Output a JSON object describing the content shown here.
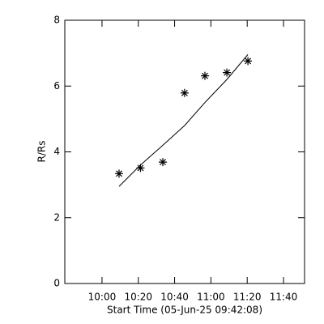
{
  "chart_data": {
    "type": "scatter",
    "x_label": "Start Time (05-Jun-25 09:42:08)",
    "y_label": "R/Rs",
    "xlim": [
      579.5,
      711.6
    ],
    "xticks": [
      {
        "value": 600,
        "label": "10:00"
      },
      {
        "value": 620,
        "label": "10:20"
      },
      {
        "value": 640,
        "label": "10:40"
      },
      {
        "value": 660,
        "label": "11:00"
      },
      {
        "value": 680,
        "label": "11:20"
      },
      {
        "value": 700,
        "label": "11:40"
      }
    ],
    "ylim": [
      0,
      8
    ],
    "yticks": [
      0,
      2,
      4,
      6,
      8
    ],
    "series": [
      {
        "type": "scatter",
        "marker": "asterisk",
        "color": "#000000",
        "x": [
          609.4,
          621.2,
          633.5,
          645.5,
          656.7,
          668.8,
          680.4
        ],
        "values": [
          3.34,
          3.51,
          3.69,
          5.79,
          6.31,
          6.41,
          6.76
        ]
      },
      {
        "type": "line",
        "color": "#000000",
        "x": [
          609.4,
          621.2,
          633.5,
          645.5,
          656.7,
          668.8,
          680.4
        ],
        "values": [
          2.95,
          3.6,
          4.2,
          4.8,
          5.5,
          6.2,
          6.96
        ]
      }
    ]
  }
}
